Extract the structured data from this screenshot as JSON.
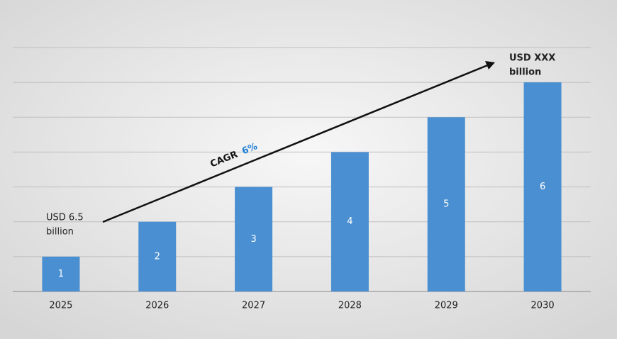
{
  "chart_data": {
    "type": "bar",
    "categories": [
      "2025",
      "2026",
      "2027",
      "2028",
      "2029",
      "2030"
    ],
    "values": [
      1,
      2,
      3,
      4,
      5,
      6
    ],
    "color": "#4a8fd1",
    "ylim": [
      0,
      7
    ],
    "yticks": [
      0,
      1,
      2,
      3,
      4,
      5,
      6,
      7
    ],
    "grid": true,
    "annotations": {
      "start": [
        "USD 6.5",
        "billion"
      ],
      "end": [
        "USD XXX",
        "billion"
      ],
      "cagr_label": "CAGR",
      "cagr_value": "6%"
    }
  }
}
